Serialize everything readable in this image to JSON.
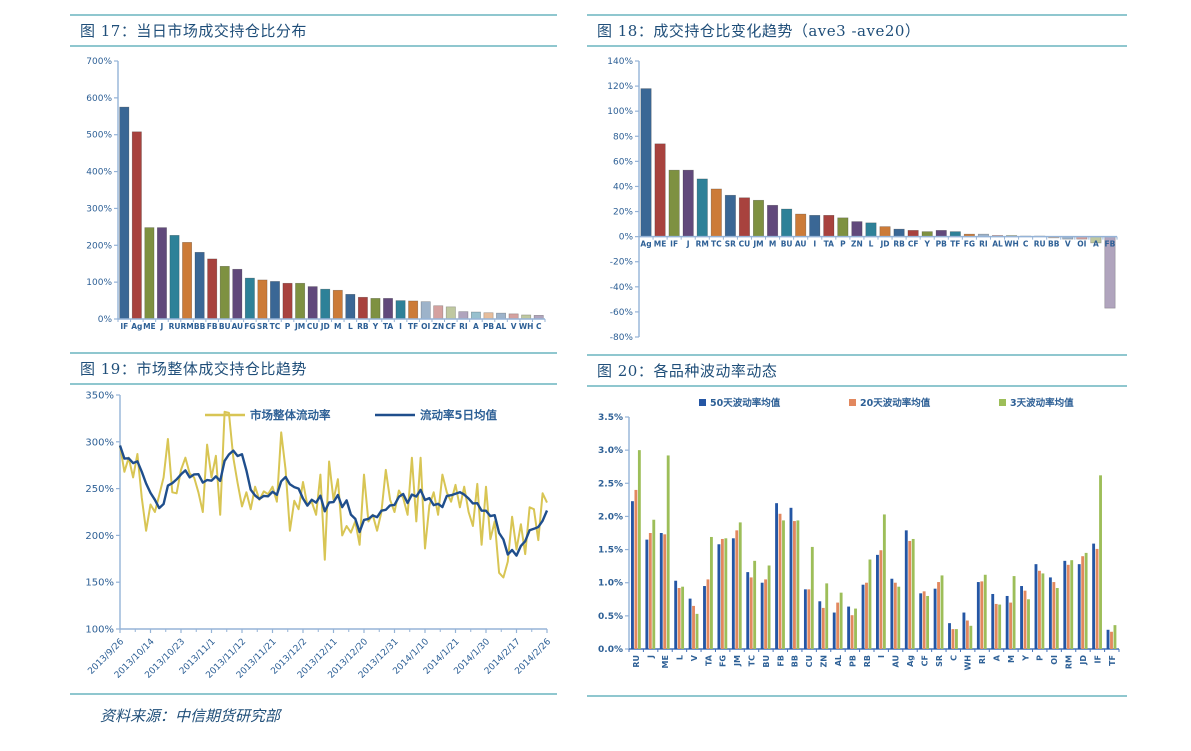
{
  "page": {
    "accent_rule_color": "#8fc7cf",
    "title_color": "#1f4e79",
    "axis_color": "#95b3d7",
    "axis_label_color": "#2e6096"
  },
  "footer": {
    "source": "资料来源：中信期货研究部"
  },
  "palette": {
    "base": [
      "#3a6795",
      "#a8423e",
      "#7e9141",
      "#61497b",
      "#2e8198",
      "#cc7b38"
    ],
    "light": [
      "#9db3ca",
      "#d4a19f",
      "#bfc8a0",
      "#b0a4bd",
      "#97c0ce",
      "#e6bd9c"
    ],
    "light_from_index": 24
  },
  "chart_data": [
    {
      "id": "fig17",
      "type": "bar",
      "title": "图 17：当日市场成交持仓比分布",
      "unit": "%",
      "ylim": [
        0,
        700
      ],
      "ystep": 100,
      "categories": [
        "IF",
        "Ag",
        "ME",
        "J",
        "RU",
        "RM",
        "BB",
        "FB",
        "BU",
        "AU",
        "FG",
        "SR",
        "TC",
        "P",
        "JM",
        "CU",
        "JD",
        "M",
        "L",
        "RB",
        "Y",
        "TA",
        "I",
        "TF",
        "OI",
        "ZN",
        "CF",
        "RI",
        "A",
        "PB",
        "AL",
        "V",
        "WH",
        "C"
      ],
      "values": [
        575,
        508,
        248,
        248,
        227,
        208,
        181,
        163,
        143,
        135,
        111,
        106,
        102,
        97,
        97,
        88,
        81,
        78,
        67,
        59,
        56,
        56,
        50,
        49,
        47,
        36,
        33,
        20,
        19,
        17,
        16,
        14,
        11,
        10
      ]
    },
    {
      "id": "fig18",
      "type": "bar",
      "title": "图 18：成交持仓比变化趋势（ave3 -ave20）",
      "unit": "%",
      "ylim": [
        -80,
        140
      ],
      "ystep": 20,
      "labels_at_zero": true,
      "categories": [
        "Ag",
        "ME",
        "IF",
        "J",
        "RM",
        "TC",
        "SR",
        "CU",
        "JM",
        "M",
        "BU",
        "AU",
        "I",
        "TA",
        "P",
        "ZN",
        "L",
        "JD",
        "RB",
        "CF",
        "Y",
        "PB",
        "TF",
        "FG",
        "RI",
        "AL",
        "WH",
        "C",
        "RU",
        "BB",
        "V",
        "OI",
        "A",
        "FB"
      ],
      "values": [
        118,
        74,
        53,
        53,
        46,
        38,
        33,
        31,
        29,
        25,
        22,
        18,
        17,
        17,
        15,
        12,
        11,
        8,
        6,
        5,
        4,
        5,
        4,
        2,
        2,
        1,
        1,
        0.5,
        0.5,
        -1,
        -2,
        -2,
        -5,
        -57
      ]
    },
    {
      "id": "fig19",
      "type": "line",
      "title": "图 19：市场整体成交持仓比趋势",
      "unit": "%",
      "ylim": [
        100,
        350
      ],
      "ystep": 50,
      "x_tick_labels": [
        "2013/9/26",
        "2013/10/14",
        "2013/10/23",
        "2013/11/1",
        "2013/11/12",
        "2013/11/21",
        "2013/12/2",
        "2013/12/11",
        "2013/12/20",
        "2013/12/31",
        "2014/1/10",
        "2014/1/21",
        "2014/1/30",
        "2014/2/17",
        "2014/2/26"
      ],
      "series": [
        {
          "name": "市场整体流动率",
          "color": "#d8c554",
          "values": [
            296,
            268,
            283,
            262,
            287,
            240,
            205,
            233,
            225,
            243,
            262,
            303,
            246,
            245,
            270,
            283,
            266,
            262,
            246,
            225,
            297,
            262,
            285,
            222,
            332,
            331,
            283,
            256,
            231,
            246,
            228,
            252,
            238,
            247,
            244,
            252,
            236,
            310,
            270,
            205,
            237,
            228,
            257,
            232,
            236,
            222,
            265,
            174,
            279,
            238,
            260,
            200,
            210,
            203,
            215,
            190,
            265,
            215,
            222,
            205,
            225,
            270,
            238,
            225,
            248,
            240,
            222,
            283,
            215,
            283,
            186,
            232,
            246,
            222,
            265,
            246,
            236,
            254,
            230,
            252,
            225,
            210,
            255,
            190,
            252,
            196,
            215,
            160,
            155,
            172,
            220,
            185,
            212,
            180,
            230,
            228,
            195,
            245,
            235
          ]
        },
        {
          "name": "流动率5日均值",
          "color": "#1f4e8c",
          "derived": "moving_average_of_first_series",
          "ma_window": 5
        }
      ]
    },
    {
      "id": "fig20",
      "type": "bar",
      "grouped": true,
      "title": "图 20：各品种波动率动态",
      "unit": "%",
      "ylim": [
        0,
        3.5
      ],
      "ystep": 0.5,
      "decimals": 1,
      "categories": [
        "RU",
        "J",
        "ME",
        "L",
        "V",
        "TA",
        "FG",
        "JM",
        "TC",
        "BU",
        "FB",
        "BB",
        "CU",
        "ZN",
        "AL",
        "PB",
        "RB",
        "I",
        "AU",
        "Ag",
        "CF",
        "SR",
        "C",
        "WH",
        "RI",
        "A",
        "M",
        "Y",
        "P",
        "OI",
        "RM",
        "JD",
        "IF",
        "TF"
      ],
      "series": [
        {
          "name": "50天波动率均值",
          "color": "#2456a4",
          "values": [
            2.23,
            1.65,
            1.75,
            1.03,
            0.76,
            0.95,
            1.58,
            1.67,
            1.16,
            1.0,
            2.2,
            2.13,
            0.9,
            0.72,
            0.55,
            0.64,
            0.97,
            1.42,
            1.06,
            1.79,
            0.84,
            0.91,
            0.39,
            0.55,
            1.01,
            0.83,
            0.8,
            0.95,
            1.28,
            1.08,
            1.33,
            1.28,
            1.59,
            0.29
          ]
        },
        {
          "name": "20天波动率均值",
          "color": "#e2885f",
          "values": [
            2.4,
            1.75,
            1.73,
            0.92,
            0.65,
            1.05,
            1.66,
            1.79,
            1.08,
            1.05,
            2.04,
            1.93,
            0.9,
            0.62,
            0.7,
            0.51,
            1.0,
            1.49,
            1.0,
            1.63,
            0.87,
            1.01,
            0.3,
            0.43,
            1.02,
            0.68,
            0.7,
            0.88,
            1.18,
            1.01,
            1.27,
            1.4,
            1.51,
            0.26
          ]
        },
        {
          "name": "3天波动率均值",
          "color": "#9dbe59",
          "values": [
            3.0,
            1.95,
            2.92,
            0.94,
            0.53,
            1.69,
            1.67,
            1.91,
            1.33,
            1.26,
            1.94,
            1.94,
            1.54,
            0.99,
            0.85,
            0.61,
            1.35,
            2.03,
            0.94,
            1.66,
            0.8,
            1.11,
            0.3,
            0.35,
            1.12,
            0.67,
            1.1,
            0.75,
            1.14,
            0.92,
            1.34,
            1.45,
            2.62,
            0.36
          ]
        }
      ]
    }
  ]
}
